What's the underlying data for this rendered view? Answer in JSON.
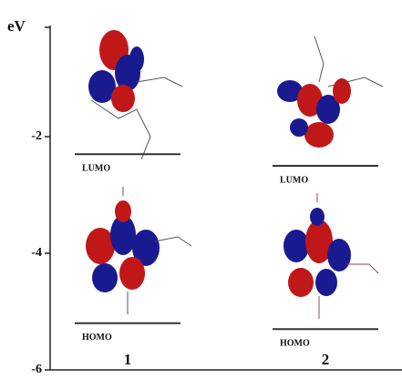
{
  "chart_data": {
    "type": "level",
    "y_label": "eV",
    "categories": [
      "1",
      "2"
    ],
    "series": [
      {
        "name": "LUMO",
        "color": "#333333",
        "values": [
          -2.3,
          -2.5
        ]
      },
      {
        "name": "HOMO",
        "color": "#333333",
        "values": [
          -5.2,
          -5.3
        ]
      }
    ],
    "ylim": [
      -6,
      0
    ],
    "yticks": [
      -2,
      -4,
      -6
    ]
  }
}
